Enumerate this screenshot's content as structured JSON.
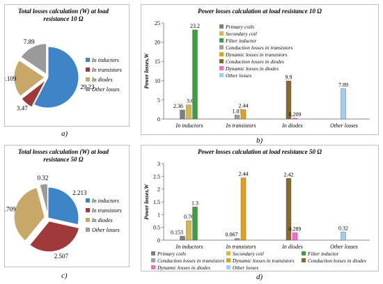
{
  "captions": {
    "a": "a)",
    "b": "b)",
    "c": "c)",
    "d": "d)"
  },
  "colors": {
    "inductors": "#3d85c6",
    "transistors": "#a03a3a",
    "diodes": "#c8a868",
    "other": "#9a9a9a",
    "primary_coils": "#7f7f7f",
    "secondary_coil": "#d8b84a",
    "filter_inductor": "#3f9f3f",
    "conduction_transistors": "#a0a0a0",
    "dynamic_transistors": "#e0a020",
    "conduction_diodes": "#8a6a2a",
    "dynamic_diodes": "#ff66cc",
    "other_losses": "#9fd0f0"
  },
  "chart_data": [
    {
      "type": "pie",
      "title": "Total losses calculation (W) at load resistance 10 Ω",
      "categories": [
        "In inductors",
        "In transistors",
        "In diodes",
        "Other losses"
      ],
      "values": [
        29.23,
        3.47,
        10.109,
        7.89
      ],
      "labels": [
        "29.23",
        "3.47",
        "10.109",
        "7.89"
      ],
      "legend": [
        "In inductors",
        "In transistors",
        "In diodes",
        "Other losses"
      ],
      "legend_position": "right"
    },
    {
      "type": "bar",
      "title": "Power losses calculation at load resistance 10 Ω",
      "ylabel": "Power losses,W",
      "ylim": [
        0,
        25
      ],
      "yticks": [
        "0",
        "5",
        "10",
        "15",
        "20",
        "25"
      ],
      "categories": [
        "In inductors",
        "In transistors",
        "In diodes",
        "Other losses"
      ],
      "series": [
        {
          "name": "Primary coils",
          "values": [
            2.36,
            null,
            null,
            null
          ]
        },
        {
          "name": "Secondary coil",
          "values": [
            3.67,
            null,
            null,
            null
          ]
        },
        {
          "name": "Filter inductor",
          "values": [
            23.2,
            null,
            null,
            null
          ]
        },
        {
          "name": "Conduction losses in transistors",
          "values": [
            null,
            1.03,
            null,
            null
          ]
        },
        {
          "name": "Dynamic losses in transistors",
          "values": [
            null,
            2.44,
            null,
            null
          ]
        },
        {
          "name": "Conduction losses in diodes",
          "values": [
            null,
            null,
            9.9,
            null
          ]
        },
        {
          "name": "Dynamic losses in diodes",
          "values": [
            null,
            null,
            0.209,
            null
          ]
        },
        {
          "name": "Other losses",
          "values": [
            null,
            null,
            null,
            7.89
          ]
        }
      ],
      "data_labels": [
        "2.36",
        "3.67",
        "23.2",
        "1.03",
        "2.44",
        "9.9",
        "0.209",
        "7.89"
      ],
      "legend_position": "top-left"
    },
    {
      "type": "pie",
      "title": "Total losses calculation (W) at load resistance 50 Ω",
      "categories": [
        "In inductors",
        "In transistors",
        "In diodes",
        "Other losses"
      ],
      "values": [
        2.213,
        2.507,
        2.709,
        0.32
      ],
      "labels": [
        "2.213",
        "2.507",
        "2.709",
        "0.32"
      ],
      "legend": [
        "In inductors",
        "In transistors",
        "In diodes",
        "Other losses"
      ],
      "legend_position": "right"
    },
    {
      "type": "bar",
      "title": "Power losses calculation at load resistance 50 Ω",
      "ylabel": "Power losses,W",
      "ylim": [
        0,
        3
      ],
      "yticks": [
        "0",
        "0.5",
        "1",
        "1.5",
        "2",
        "2.5",
        "3"
      ],
      "categories": [
        "In inductors",
        "In transistors",
        "In diodes",
        "Other losses"
      ],
      "series": [
        {
          "name": "Primary coils",
          "values": [
            0.153,
            null,
            null,
            null
          ]
        },
        {
          "name": "Secondary coil",
          "values": [
            0.76,
            null,
            null,
            null
          ]
        },
        {
          "name": "Filter inductor",
          "values": [
            1.3,
            null,
            null,
            null
          ]
        },
        {
          "name": "Conduction losses in transistors",
          "values": [
            null,
            0.067,
            null,
            null
          ]
        },
        {
          "name": "Dynamic losses in transistors",
          "values": [
            null,
            2.44,
            null,
            null
          ]
        },
        {
          "name": "Dynamic losses in diodes",
          "values": [
            null,
            null,
            2.42,
            null
          ]
        },
        {
          "name": "Conduction losses in diodes",
          "values": [
            null,
            null,
            0.289,
            null
          ]
        },
        {
          "name": "Other losses",
          "values": [
            null,
            null,
            null,
            0.32
          ]
        }
      ],
      "data_labels": [
        "0.153",
        "0.76",
        "1.3",
        "0.067",
        "2.44",
        "2.42",
        "0.289",
        "0.32"
      ],
      "legend": [
        "Primary coils",
        "Secondary coil",
        "Filter inductor",
        "Conduction losses in transistors",
        "Dynamic losses in transistors",
        "Conduction losses in diodes",
        "Dynamic losses in diodes",
        "Other losses"
      ],
      "legend_position": "bottom"
    }
  ]
}
